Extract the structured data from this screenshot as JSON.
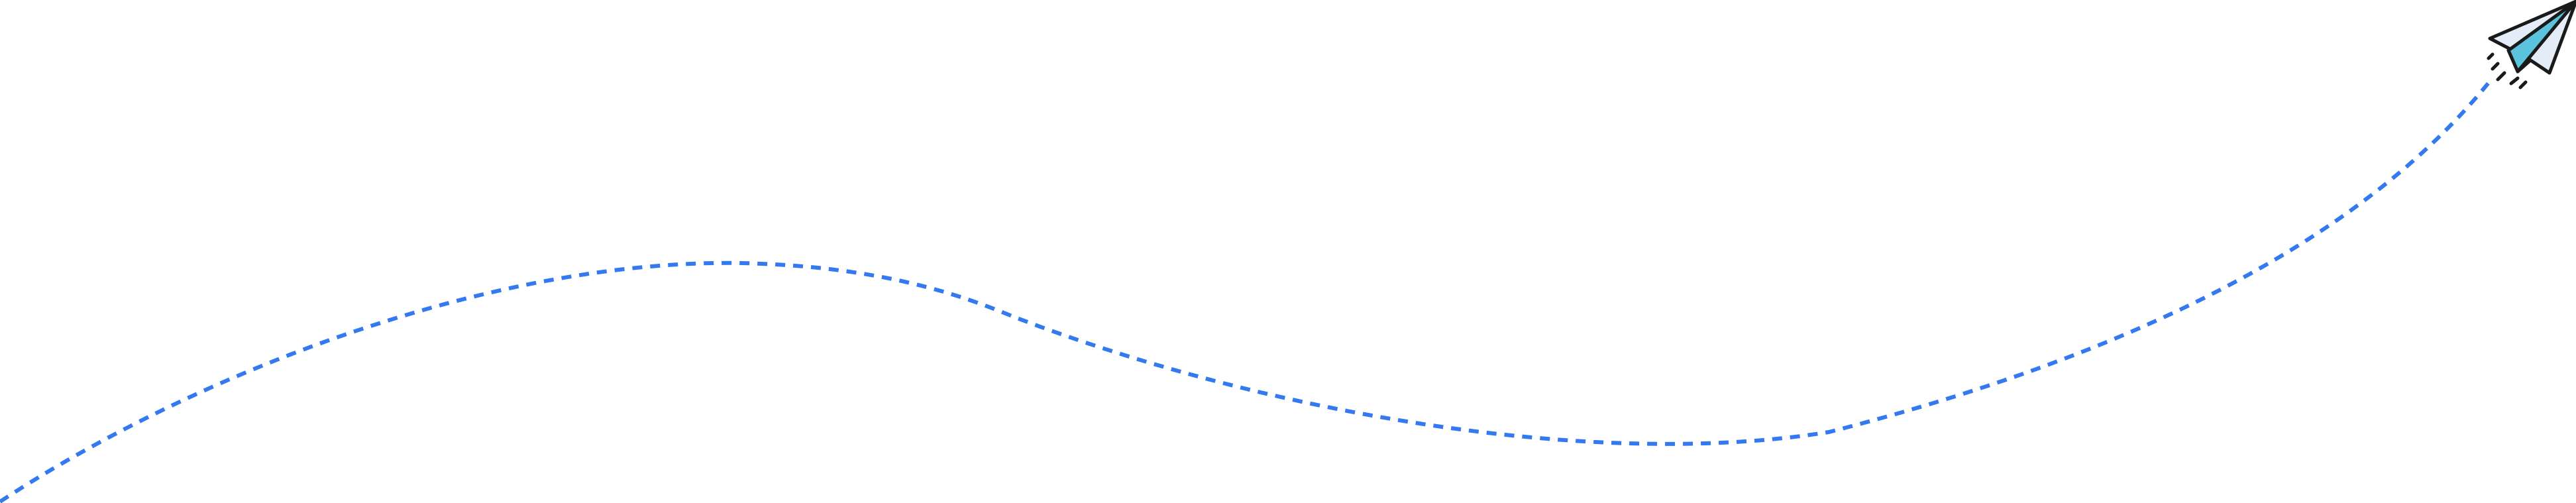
{
  "illustration": {
    "icon": "paper-plane-icon",
    "path_style": "dashed",
    "colors": {
      "background": "#ffffff",
      "trail": "#3479f0",
      "plane_outline": "#1a1a1a",
      "plane_fill_light": "#e4ecf7",
      "plane_fill_accent": "#5cc3dc"
    }
  }
}
